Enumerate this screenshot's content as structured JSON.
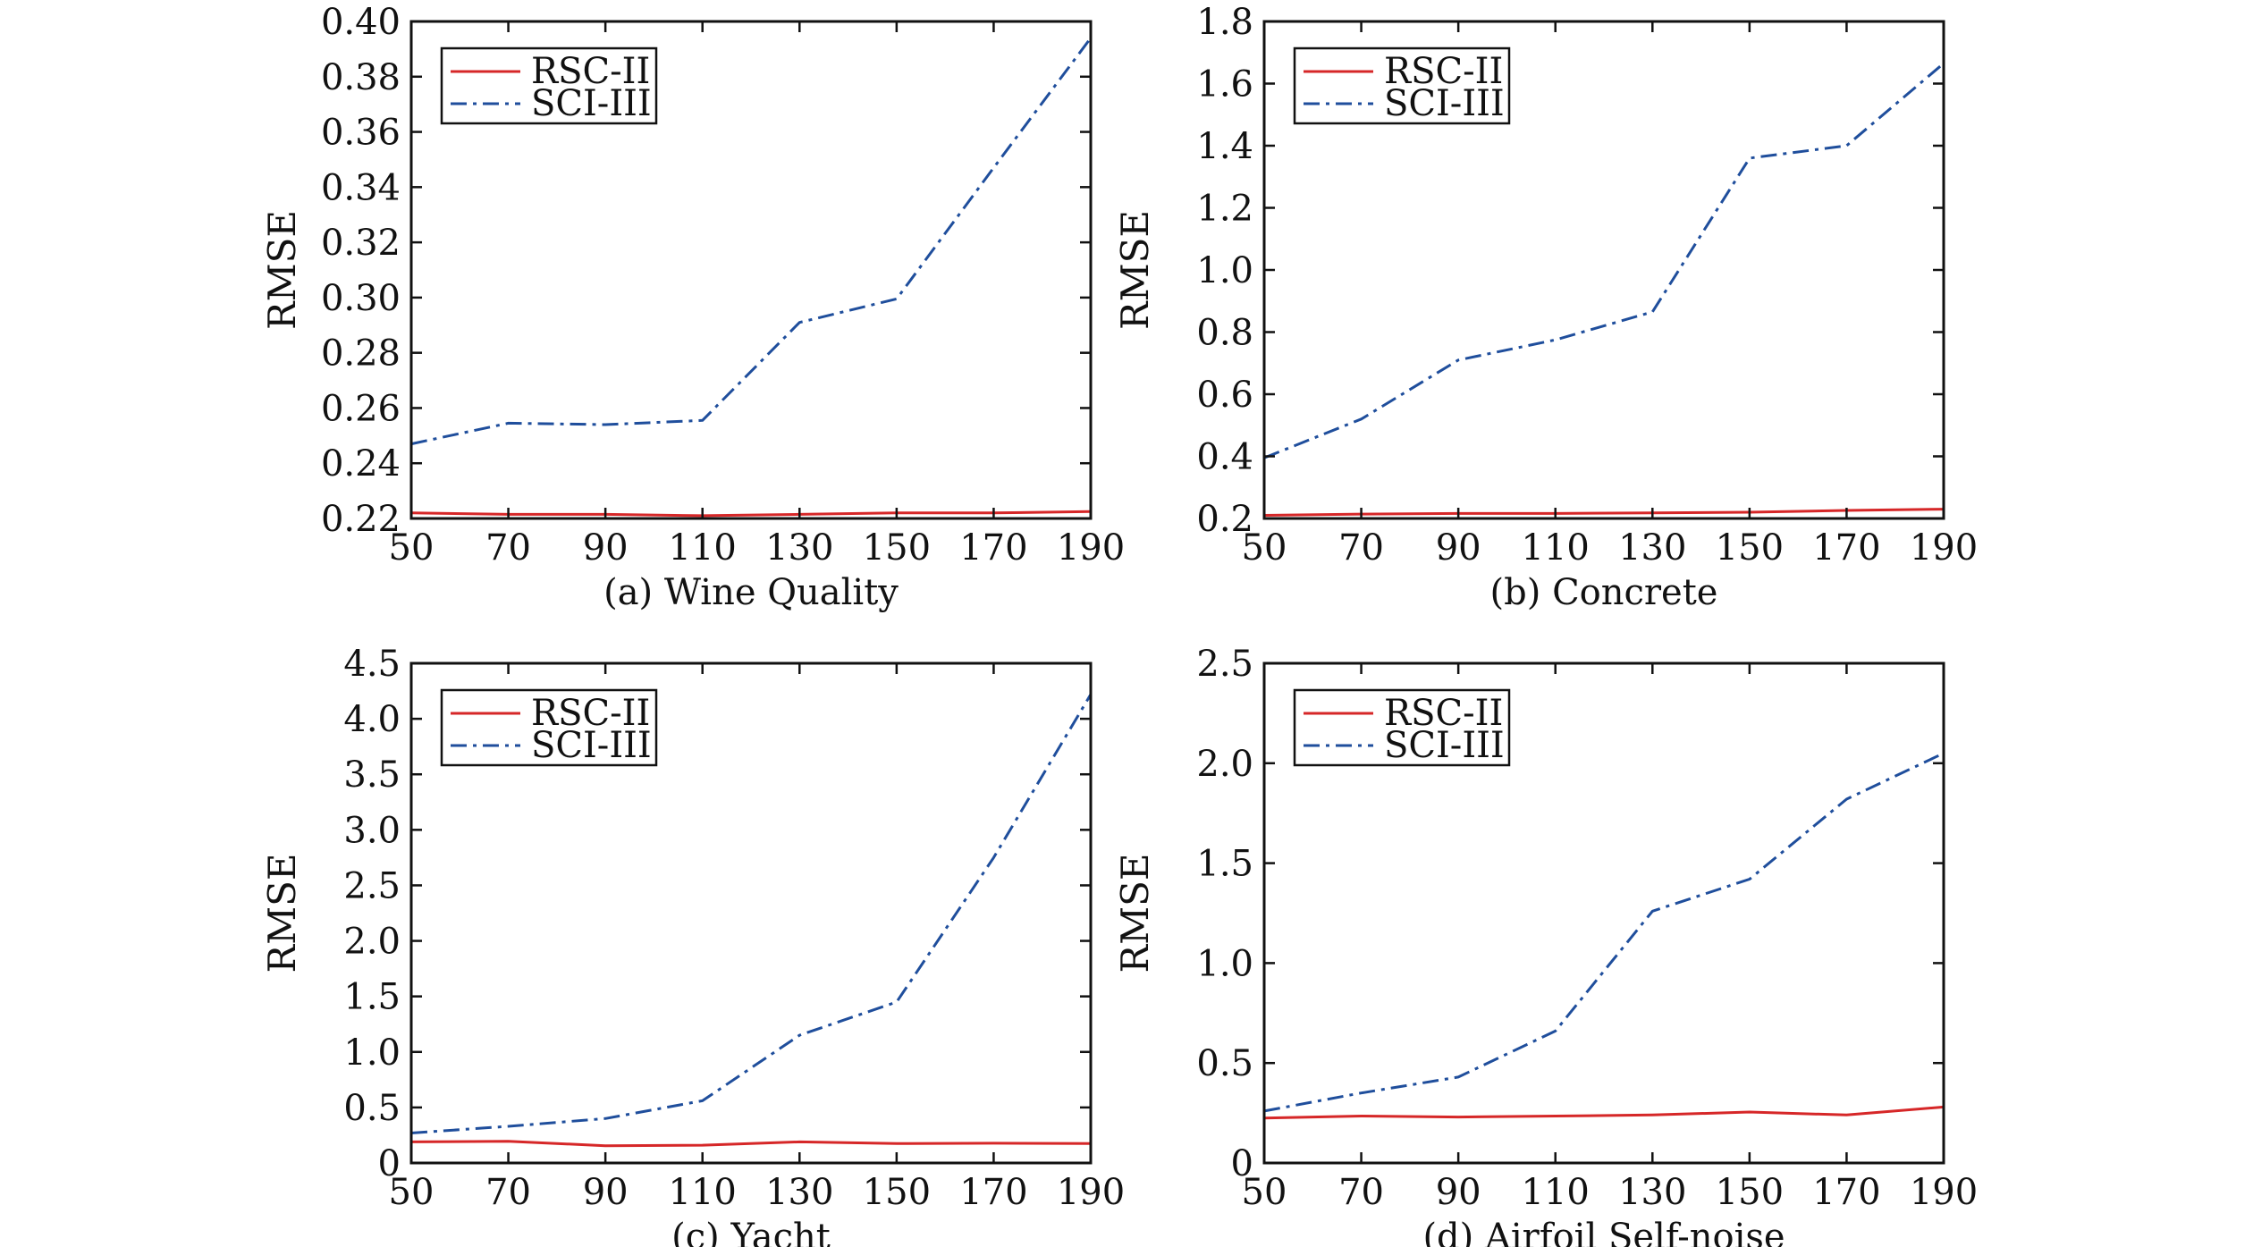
{
  "chart_data": [
    {
      "type": "line",
      "caption": "(a) Wine Quality",
      "ylabel": "RMSE",
      "xlabel": "",
      "x": [
        50,
        70,
        90,
        110,
        130,
        150,
        170,
        190
      ],
      "xlim": [
        50,
        190
      ],
      "ylim": [
        0.22,
        0.4
      ],
      "xticks": [
        "50",
        "70",
        "90",
        "110",
        "130",
        "150",
        "170",
        "190"
      ],
      "yticks": [
        "0.22",
        "0.24",
        "0.26",
        "0.28",
        "0.30",
        "0.32",
        "0.34",
        "0.36",
        "0.38",
        "0.40"
      ],
      "legend_position": "top-left",
      "series": [
        {
          "name": "RSC-II",
          "color": "#d62728",
          "style": "solid",
          "values": [
            0.222,
            0.2215,
            0.2215,
            0.221,
            0.2215,
            0.222,
            0.222,
            0.2225
          ]
        },
        {
          "name": "SCI-III",
          "color": "#1f4e9c",
          "style": "dashdot",
          "values": [
            0.247,
            0.2545,
            0.254,
            0.2555,
            0.291,
            0.2995,
            0.347,
            0.394
          ]
        }
      ]
    },
    {
      "type": "line",
      "caption": "(b) Concrete",
      "ylabel": "RMSE",
      "xlabel": "",
      "x": [
        50,
        70,
        90,
        110,
        130,
        150,
        170,
        190
      ],
      "xlim": [
        50,
        190
      ],
      "ylim": [
        0.2,
        1.8
      ],
      "xticks": [
        "50",
        "70",
        "90",
        "110",
        "130",
        "150",
        "170",
        "190"
      ],
      "yticks": [
        "0.2",
        "0.4",
        "0.6",
        "0.8",
        "1.0",
        "1.2",
        "1.4",
        "1.6",
        "1.8"
      ],
      "legend_position": "top-left",
      "series": [
        {
          "name": "RSC-II",
          "color": "#d62728",
          "style": "solid",
          "values": [
            0.21,
            0.214,
            0.216,
            0.216,
            0.218,
            0.22,
            0.226,
            0.23
          ]
        },
        {
          "name": "SCI-III",
          "color": "#1f4e9c",
          "style": "dashdot",
          "values": [
            0.395,
            0.52,
            0.71,
            0.775,
            0.865,
            1.36,
            1.4,
            1.665
          ]
        }
      ]
    },
    {
      "type": "line",
      "caption": "(c) Yacht",
      "ylabel": "RMSE",
      "xlabel": "",
      "x": [
        50,
        70,
        90,
        110,
        130,
        150,
        170,
        190
      ],
      "xlim": [
        50,
        190
      ],
      "ylim": [
        0,
        4.5
      ],
      "xticks": [
        "50",
        "70",
        "90",
        "110",
        "130",
        "150",
        "170",
        "190"
      ],
      "yticks": [
        "0",
        "0.5",
        "1.0",
        "1.5",
        "2.0",
        "2.5",
        "3.0",
        "3.5",
        "4.0",
        "4.5"
      ],
      "legend_position": "top-left",
      "series": [
        {
          "name": "RSC-II",
          "color": "#d62728",
          "style": "solid",
          "values": [
            0.19,
            0.195,
            0.155,
            0.16,
            0.19,
            0.175,
            0.178,
            0.175
          ]
        },
        {
          "name": "SCI-III",
          "color": "#1f4e9c",
          "style": "dashdot",
          "values": [
            0.27,
            0.33,
            0.4,
            0.56,
            1.15,
            1.45,
            2.75,
            4.22
          ]
        }
      ]
    },
    {
      "type": "line",
      "caption": "(d) Airfoil Self-noise",
      "ylabel": "RMSE",
      "xlabel": "",
      "x": [
        50,
        70,
        90,
        110,
        130,
        150,
        170,
        190
      ],
      "xlim": [
        50,
        190
      ],
      "ylim": [
        0,
        2.5
      ],
      "xticks": [
        "50",
        "70",
        "90",
        "110",
        "130",
        "150",
        "170",
        "190"
      ],
      "yticks": [
        "0",
        "0.5",
        "1.0",
        "1.5",
        "2.0",
        "2.5"
      ],
      "legend_position": "top-left",
      "series": [
        {
          "name": "RSC-II",
          "color": "#d62728",
          "style": "solid",
          "values": [
            0.225,
            0.235,
            0.23,
            0.235,
            0.24,
            0.255,
            0.24,
            0.28
          ]
        },
        {
          "name": "SCI-III",
          "color": "#1f4e9c",
          "style": "dashdot",
          "values": [
            0.26,
            0.35,
            0.43,
            0.66,
            1.26,
            1.42,
            1.82,
            2.05
          ]
        }
      ]
    }
  ]
}
